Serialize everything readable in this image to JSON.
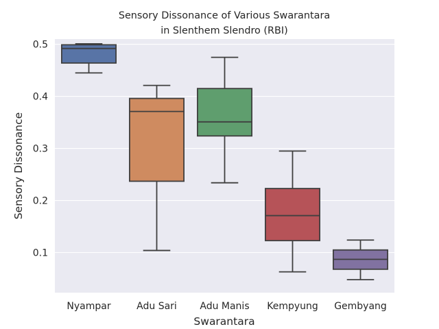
{
  "chart_data": {
    "type": "boxplot",
    "title_lines": [
      "Sensory Dissonance of Various Swarantara",
      "in Slenthem Slendro (RBI)"
    ],
    "xlabel": "Swarantara",
    "ylabel": "Sensory Dissonance",
    "ylim": [
      0.023,
      0.51
    ],
    "yticks": [
      "0.1",
      "0.2",
      "0.3",
      "0.4",
      "0.5"
    ],
    "categories": [
      "Nyampar",
      "Adu Sari",
      "Adu Manis",
      "Kempyung",
      "Gembyang"
    ],
    "boxes": [
      {
        "category": "Nyampar",
        "whisker_low": 0.445,
        "q1": 0.464,
        "median": 0.492,
        "q3": 0.499,
        "whisker_high": 0.501,
        "color": "#5874a6"
      },
      {
        "category": "Adu Sari",
        "whisker_low": 0.104,
        "q1": 0.237,
        "median": 0.371,
        "q3": 0.396,
        "whisker_high": 0.421,
        "color": "#cf8b60"
      },
      {
        "category": "Adu Manis",
        "whisker_low": 0.234,
        "q1": 0.324,
        "median": 0.351,
        "q3": 0.415,
        "whisker_high": 0.475,
        "color": "#5f9e6e"
      },
      {
        "category": "Kempyung",
        "whisker_low": 0.063,
        "q1": 0.123,
        "median": 0.171,
        "q3": 0.223,
        "whisker_high": 0.295,
        "color": "#b65358"
      },
      {
        "category": "Gembyang",
        "whisker_low": 0.048,
        "q1": 0.068,
        "median": 0.087,
        "q3": 0.105,
        "whisker_high": 0.124,
        "color": "#8172a1"
      }
    ],
    "grid": true,
    "background": "#eaeaf2",
    "grid_color": "#ffffff",
    "line_color": "#3f3f3f"
  }
}
